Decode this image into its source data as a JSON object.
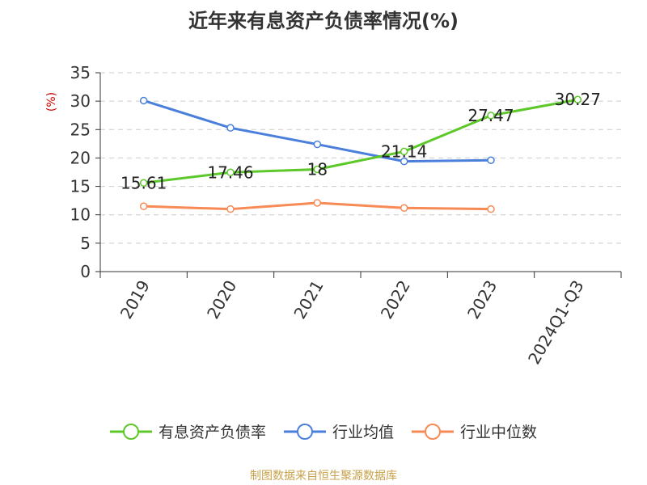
{
  "chart_data": {
    "type": "line",
    "title": "近年来有息资产负债率情况(%)",
    "ylabel": "(%)",
    "xlabel": "",
    "categories": [
      "2019",
      "2020",
      "2021",
      "2022",
      "2023",
      "2024Q1-Q3"
    ],
    "ylim": [
      0,
      35
    ],
    "yticks": [
      0,
      5,
      10,
      15,
      20,
      25,
      30,
      35
    ],
    "grid": true,
    "legend_position": "bottom",
    "series": [
      {
        "name": "有息资产负债率",
        "color": "#5cc82a",
        "values": [
          15.61,
          17.46,
          18,
          21.14,
          27.47,
          30.27
        ],
        "labels": [
          "15.61",
          "17.46",
          "18",
          "21.14",
          "27.47",
          "30.27"
        ]
      },
      {
        "name": "行业均值",
        "color": "#4a7fdc",
        "values": [
          30.1,
          25.3,
          22.4,
          19.4,
          19.6,
          null
        ]
      },
      {
        "name": "行业中位数",
        "color": "#f78a55",
        "values": [
          11.5,
          11.0,
          12.1,
          11.2,
          11.0,
          null
        ]
      }
    ]
  },
  "source": "制图数据来自恒生聚源数据库"
}
